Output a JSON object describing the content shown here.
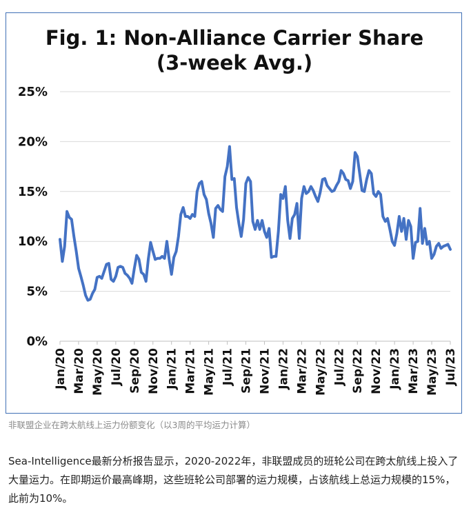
{
  "chart_data": {
    "type": "line",
    "title_lines": [
      "Fig. 1: Non-Alliance Carrier Share",
      "(3-week Avg.)"
    ],
    "ylim": [
      0,
      25
    ],
    "y_ticks": [
      "0%",
      "5%",
      "10%",
      "15%",
      "20%",
      "25%"
    ],
    "grid": true,
    "legend": "none",
    "x_tick_labels": [
      "Jan/20",
      "Mar/20",
      "May/20",
      "Jul/20",
      "Sep/20",
      "Nov/20",
      "Jan/21",
      "Mar/21",
      "May/21",
      "Jul/21",
      "Sep/21",
      "Nov/21",
      "Jan/22",
      "Mar/22",
      "May/22",
      "Jul/22",
      "Sep/22",
      "Nov/22",
      "Jan/23",
      "Mar/23",
      "May/23",
      "Jul/23"
    ],
    "series": [
      {
        "color": "#4472c4",
        "values": [
          10.2,
          8.0,
          9.5,
          13.0,
          12.4,
          12.2,
          10.5,
          9.0,
          7.3,
          6.5,
          5.6,
          4.6,
          4.1,
          4.2,
          4.8,
          5.2,
          6.4,
          6.5,
          6.3,
          7.0,
          7.7,
          7.8,
          6.2,
          6.0,
          6.5,
          7.4,
          7.5,
          7.4,
          6.8,
          6.6,
          6.3,
          5.8,
          7.3,
          8.6,
          8.2,
          6.9,
          6.7,
          6.0,
          8.2,
          9.9,
          9.0,
          8.2,
          8.3,
          8.3,
          8.5,
          8.3,
          10.0,
          8.2,
          6.7,
          8.4,
          9.0,
          10.5,
          12.7,
          13.4,
          12.5,
          12.5,
          12.3,
          12.7,
          12.5,
          15.0,
          15.8,
          16.0,
          14.7,
          14.2,
          12.8,
          11.8,
          10.4,
          13.3,
          13.6,
          13.2,
          13.0,
          16.5,
          17.5,
          19.5,
          16.2,
          16.3,
          13.4,
          11.8,
          10.5,
          12.2,
          15.8,
          16.4,
          16.0,
          12.0,
          11.2,
          12.1,
          11.2,
          12.1,
          11.0,
          10.4,
          11.3,
          8.4,
          8.5,
          8.5,
          11.0,
          14.7,
          14.3,
          15.5,
          12.1,
          10.3,
          12.3,
          12.7,
          13.8,
          10.3,
          14.3,
          15.5,
          14.8,
          15.0,
          15.5,
          15.1,
          14.5,
          14.0,
          14.9,
          16.2,
          16.3,
          15.6,
          15.3,
          15.0,
          15.1,
          15.6,
          16.0,
          17.1,
          16.8,
          16.2,
          16.1,
          15.3,
          16.0,
          18.9,
          18.5,
          16.8,
          15.1,
          15.0,
          16.2,
          17.1,
          16.8,
          14.8,
          14.5,
          15.0,
          14.7,
          12.5,
          12.0,
          12.3,
          11.2,
          10.0,
          9.6,
          10.8,
          12.5,
          11.0,
          12.3,
          10.2,
          12.1,
          11.5,
          8.3,
          9.9,
          10.0,
          13.3,
          9.8,
          11.3,
          9.7,
          10.0,
          8.3,
          8.7,
          9.5,
          9.8,
          9.3,
          9.5,
          9.6,
          9.7,
          9.2
        ]
      }
    ]
  },
  "caption": "非联盟企业在跨太航线上运力份额变化（以3周的平均运力计算）",
  "paragraph": "Sea-Intelligence最新分析报告显示，2020-2022年，非联盟成员的班轮公司在跨太航线上投入了大量运力。在即期运价最高峰期，这些班轮公司部署的运力规模，占该航线上总运力规模的15%，此前为10%。"
}
